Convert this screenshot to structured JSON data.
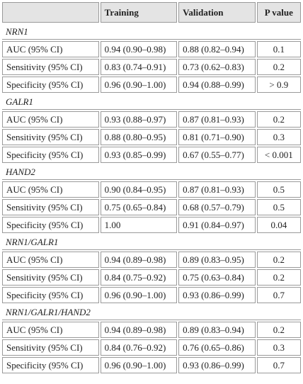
{
  "table": {
    "header": [
      "Training",
      "Validation",
      "P value"
    ],
    "groups": [
      {
        "name": "NRN1",
        "rows": [
          [
            "AUC (95% CI)",
            "0.94 (0.90–0.98)",
            "0.88 (0.82–0.94)",
            "0.1"
          ],
          [
            "Sensitivity (95% CI)",
            "0.83 (0.74–0.91)",
            "0.73 (0.62–0.83)",
            "0.2"
          ],
          [
            "Specificity (95% CI)",
            "0.96 (0.90–1.00)",
            "0.94 (0.88–0.99)",
            "> 0.9"
          ]
        ]
      },
      {
        "name": "GALR1",
        "rows": [
          [
            "AUC (95% CI)",
            "0.93 (0.88–0.97)",
            "0.87 (0.81–0.93)",
            "0.2"
          ],
          [
            "Sensitivity (95% CI)",
            "0.88 (0.80–0.95)",
            "0.81 (0.71–0.90)",
            "0.3"
          ],
          [
            "Specificity (95% CI)",
            "0.93 (0.85–0.99)",
            "0.67 (0.55–0.77)",
            "< 0.001"
          ]
        ]
      },
      {
        "name": "HAND2",
        "rows": [
          [
            "AUC (95% CI)",
            "0.90 (0.84–0.95)",
            "0.87 (0.81–0.93)",
            "0.5"
          ],
          [
            "Sensitivity (95% CI)",
            "0.75 (0.65–0.84)",
            "0.68 (0.57–0.79)",
            "0.5"
          ],
          [
            "Specificity (95% CI)",
            "1.00",
            "0.91 (0.84–0.97)",
            "0.04"
          ]
        ]
      },
      {
        "name": "NRN1/GALR1",
        "rows": [
          [
            "AUC (95% CI)",
            "0.94 (0.89–0.98)",
            "0.89 (0.83–0.95)",
            "0.2"
          ],
          [
            "Sensitivity (95% CI)",
            "0.84 (0.75–0.92)",
            "0.75 (0.63–0.84)",
            "0.2"
          ],
          [
            "Specificity (95% CI)",
            "0.96 (0.90–1.00)",
            "0.93 (0.86–0.99)",
            "0.7"
          ]
        ]
      },
      {
        "name": "NRN1/GALR1/HAND2",
        "rows": [
          [
            "AUC (95% CI)",
            "0.94 (0.89–0.98)",
            "0.89 (0.83–0.94)",
            "0.2"
          ],
          [
            "Sensitivity (95% CI)",
            "0.84 (0.76–0.92)",
            "0.76 (0.65–0.86)",
            "0.3"
          ],
          [
            "Specificity (95% CI)",
            "0.96 (0.90–1.00)",
            "0.93 (0.86–0.99)",
            "0.7"
          ]
        ]
      }
    ]
  }
}
